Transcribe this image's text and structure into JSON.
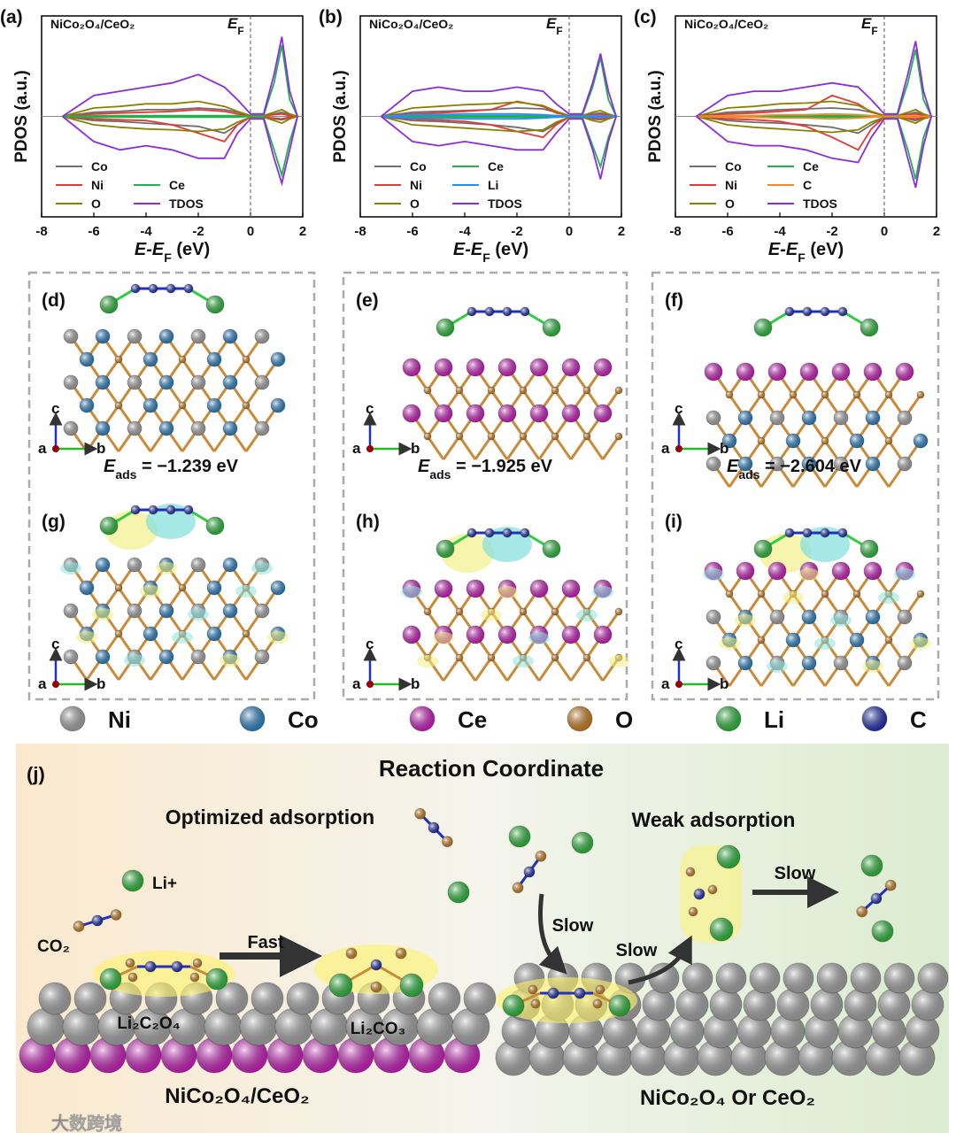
{
  "chart_data": [
    {
      "type": "line",
      "panel": "(a)",
      "title": "NiCo₂O₄/CeO₂",
      "ylabel": "PDOS (a.u.)",
      "xlabel": [
        "E-E",
        "F",
        " (eV)"
      ],
      "fermi_label": [
        "E",
        "F"
      ],
      "x": [
        -7.2,
        -6,
        -5,
        -4,
        -3,
        -2,
        -1,
        -0.5,
        0,
        0.5,
        0.9,
        1.2,
        1.5,
        1.8
      ],
      "xlim": [
        -8,
        2
      ],
      "xticks": [
        -8,
        -6,
        -4,
        -2,
        0,
        2
      ],
      "ylim": [
        -12,
        12
      ],
      "series": [
        {
          "name": "Co",
          "color": "#6e6e6e",
          "values": [
            0,
            0.5,
            0.6,
            0.8,
            0.8,
            1,
            0.8,
            0.5,
            0.1,
            0.1,
            0.3,
            0.5,
            0.2,
            0
          ],
          "values_down": [
            0,
            -0.5,
            -0.6,
            -0.8,
            -1,
            -1.2,
            -2,
            -1,
            -0.1,
            -0.1,
            -0.3,
            -0.4,
            -0.2,
            0
          ]
        },
        {
          "name": "Ni",
          "color": "#e53935",
          "values": [
            0,
            0.3,
            0.4,
            0.5,
            0.6,
            0.8,
            0.6,
            0.3,
            0.1,
            0.1,
            0.2,
            0.3,
            0.1,
            0
          ],
          "values_down": [
            0,
            -0.3,
            -0.4,
            -0.5,
            -1,
            -2,
            -3,
            -1,
            -0.1,
            -0.1,
            -0.2,
            -0.3,
            -0.1,
            0
          ]
        },
        {
          "name": "O",
          "color": "#8b8000",
          "values": [
            0,
            1,
            1.2,
            1.5,
            1.5,
            1.8,
            1.2,
            0.6,
            0.1,
            0.1,
            0.5,
            0.8,
            0.3,
            0
          ],
          "values_down": [
            0,
            -1,
            -1.3,
            -1.5,
            -1.6,
            -1.8,
            -1.5,
            -0.7,
            -0.1,
            -0.1,
            -0.5,
            -0.8,
            -0.3,
            0
          ]
        },
        {
          "name": "Ce",
          "color": "#22b14c",
          "values": [
            0,
            0.1,
            0.1,
            0.1,
            0.1,
            0.1,
            0.1,
            0.1,
            0,
            0.1,
            4,
            8.5,
            2,
            0
          ],
          "values_down": [
            0,
            -0.1,
            -0.1,
            -0.1,
            -0.1,
            -0.1,
            -0.1,
            -0.1,
            0,
            -0.1,
            -4,
            -7,
            -3,
            0
          ]
        },
        {
          "name": "TDOS",
          "color": "#8a2be2",
          "values": [
            0,
            2.5,
            3,
            3.5,
            4,
            5,
            3.5,
            2,
            0.3,
            0.3,
            5,
            9.5,
            3,
            0
          ],
          "values_down": [
            0,
            -3,
            -4,
            -3.5,
            -4,
            -5,
            -5,
            -2,
            -0.3,
            -0.3,
            -5,
            -8,
            -4,
            0
          ]
        }
      ]
    },
    {
      "type": "line",
      "panel": "(b)",
      "title": "NiCo₂O₄/CeO₂",
      "ylabel": "PDOS (a.u.)",
      "xlabel": [
        "E-E",
        "F",
        " (eV)"
      ],
      "fermi_label": [
        "E",
        "F"
      ],
      "x": [
        -7.2,
        -6,
        -5,
        -4,
        -3,
        -2,
        -1,
        -0.5,
        0,
        0.5,
        0.9,
        1.2,
        1.5,
        1.8
      ],
      "xlim": [
        -8,
        2
      ],
      "xticks": [
        -8,
        -6,
        -4,
        -2,
        0,
        2
      ],
      "ylim": [
        -12,
        12
      ],
      "series": [
        {
          "name": "Co",
          "color": "#6e6e6e",
          "values": [
            0,
            0.5,
            0.6,
            0.7,
            0.8,
            1,
            0.9,
            0.5,
            0.1,
            0.1,
            0.3,
            0.4,
            0.2,
            0
          ],
          "values_down": [
            0,
            -0.5,
            -0.6,
            -0.8,
            -1,
            -1.3,
            -1.8,
            -0.9,
            -0.1,
            -0.1,
            -0.3,
            -0.4,
            -0.2,
            0
          ]
        },
        {
          "name": "Ni",
          "color": "#e53935",
          "values": [
            0,
            0.3,
            0.4,
            0.6,
            0.8,
            1.8,
            1.2,
            0.4,
            0.1,
            0.1,
            0.2,
            0.3,
            0.1,
            0
          ],
          "values_down": [
            0,
            -0.3,
            -0.4,
            -0.6,
            -1,
            -1.8,
            -2.5,
            -1,
            -0.1,
            -0.1,
            -0.2,
            -0.3,
            -0.1,
            0
          ]
        },
        {
          "name": "O",
          "color": "#8b8000",
          "values": [
            0,
            1,
            1.2,
            1.4,
            1.5,
            1.7,
            1.3,
            0.6,
            0.1,
            0.1,
            0.5,
            0.7,
            0.3,
            0
          ],
          "values_down": [
            0,
            -1,
            -1.2,
            -1.4,
            -1.6,
            -1.8,
            -1.6,
            -0.7,
            -0.1,
            -0.1,
            -0.5,
            -0.7,
            -0.3,
            0
          ]
        },
        {
          "name": "Ce",
          "color": "#22b14c",
          "values": [
            0,
            0.1,
            0.1,
            0.1,
            0.1,
            0.1,
            0.1,
            0.1,
            0,
            0.1,
            3.5,
            7,
            2,
            0
          ],
          "values_down": [
            0,
            -0.1,
            -0.1,
            -0.1,
            -0.1,
            -0.1,
            -0.1,
            -0.1,
            0,
            -0.1,
            -3.5,
            -6,
            -2.5,
            0
          ]
        },
        {
          "name": "Li",
          "color": "#1e90ff",
          "values": [
            0,
            0.2,
            0.2,
            0.3,
            0.3,
            0.3,
            0.2,
            0.1,
            0,
            0,
            0.1,
            0.1,
            0,
            0
          ],
          "values_down": [
            0,
            -0.2,
            -0.2,
            -0.3,
            -0.3,
            -0.3,
            -0.2,
            -0.1,
            0,
            0,
            -0.1,
            -0.1,
            0,
            0
          ]
        },
        {
          "name": "TDOS",
          "color": "#8a2be2",
          "values": [
            0,
            3,
            3.5,
            3,
            3,
            3.5,
            3,
            1.5,
            0.3,
            0.3,
            4,
            7.5,
            3,
            0
          ],
          "values_down": [
            0,
            -3,
            -3.5,
            -3,
            -3.5,
            -4,
            -4,
            -2,
            -0.3,
            -0.3,
            -4,
            -7.5,
            -3,
            0
          ]
        }
      ]
    },
    {
      "type": "line",
      "panel": "(c)",
      "title": "NiCo₂O₄/CeO₂",
      "ylabel": "PDOS (a.u.)",
      "xlabel": [
        "E-E",
        "F",
        " (eV)"
      ],
      "fermi_label": [
        "E",
        "F"
      ],
      "x": [
        -7.2,
        -6,
        -5,
        -4,
        -3,
        -2,
        -1,
        -0.5,
        0,
        0.5,
        0.9,
        1.2,
        1.5,
        1.8
      ],
      "xlim": [
        -8,
        2
      ],
      "xticks": [
        -8,
        -6,
        -4,
        -2,
        0,
        2
      ],
      "ylim": [
        -12,
        12
      ],
      "series": [
        {
          "name": "Co",
          "color": "#6e6e6e",
          "values": [
            0,
            0.5,
            0.6,
            0.8,
            0.9,
            1,
            0.8,
            0.5,
            0.1,
            0.1,
            0.3,
            0.5,
            0.2,
            0
          ],
          "values_down": [
            0,
            -0.5,
            -0.7,
            -0.8,
            -1,
            -1.3,
            -2,
            -1,
            -0.1,
            -0.1,
            -0.3,
            -0.5,
            -0.2,
            0
          ]
        },
        {
          "name": "Ni",
          "color": "#e53935",
          "values": [
            0,
            0.3,
            0.4,
            0.6,
            0.8,
            2.5,
            1.5,
            0.5,
            0.1,
            0.1,
            0.2,
            0.3,
            0.1,
            0
          ],
          "values_down": [
            0,
            -0.3,
            -0.4,
            -0.6,
            -1.2,
            -2.5,
            -4,
            -1.5,
            -0.1,
            -0.1,
            -0.2,
            -0.3,
            -0.1,
            0
          ]
        },
        {
          "name": "O",
          "color": "#8b8000",
          "values": [
            0,
            1,
            1.2,
            1.5,
            1.6,
            1.8,
            1.3,
            0.6,
            0.1,
            0.1,
            0.5,
            0.8,
            0.3,
            0
          ],
          "values_down": [
            0,
            -1,
            -1.3,
            -1.5,
            -1.7,
            -1.9,
            -1.6,
            -0.7,
            -0.1,
            -0.1,
            -0.5,
            -0.8,
            -0.3,
            0
          ]
        },
        {
          "name": "Ce",
          "color": "#22b14c",
          "values": [
            0,
            0.1,
            0.1,
            0.1,
            0.1,
            0.1,
            0.1,
            0.1,
            0,
            0.1,
            4,
            8,
            2,
            0
          ],
          "values_down": [
            0,
            -0.1,
            -0.1,
            -0.1,
            -0.1,
            -0.1,
            -0.1,
            -0.1,
            0,
            -0.1,
            -4,
            -7.5,
            -2.5,
            0
          ]
        },
        {
          "name": "C",
          "color": "#f08c2c",
          "values": [
            0,
            0.1,
            0.1,
            0.2,
            0.2,
            0.3,
            0.2,
            0.1,
            0,
            0,
            0.1,
            0.1,
            0,
            0
          ],
          "values_down": [
            0,
            -0.1,
            -0.1,
            -0.2,
            -0.2,
            -0.3,
            -0.2,
            -0.1,
            0,
            0,
            -0.1,
            -0.1,
            0,
            0
          ]
        },
        {
          "name": "TDOS",
          "color": "#8a2be2",
          "values": [
            0,
            2.5,
            3,
            3,
            3.5,
            4,
            3.5,
            2,
            0.3,
            0.3,
            5,
            9,
            3,
            0
          ],
          "values_down": [
            0,
            -3,
            -3.5,
            -3.5,
            -4,
            -5,
            -5.5,
            -2.5,
            -0.3,
            -0.3,
            -5,
            -8.5,
            -3.5,
            0
          ]
        }
      ]
    }
  ],
  "structures": [
    {
      "label": "(d)",
      "axes": [
        "c",
        "a",
        "b"
      ],
      "e_ads": [
        "E",
        "ads",
        " = −1.239 eV"
      ]
    },
    {
      "label": "(e)",
      "axes": [
        "c",
        "a",
        "b"
      ],
      "e_ads": [
        "E",
        "ads",
        " = −1.925 eV"
      ]
    },
    {
      "label": "(f)",
      "axes": [
        "c",
        "a",
        "b"
      ],
      "e_ads": [
        "E",
        "ads",
        " = −2.604 eV"
      ]
    },
    {
      "label": "(g)",
      "axes": [
        "c",
        "a",
        "b"
      ]
    },
    {
      "label": "(h)",
      "axes": [
        "c",
        "a",
        "b"
      ]
    },
    {
      "label": "(i)",
      "axes": [
        "c",
        "a",
        "b"
      ]
    }
  ],
  "atoms": [
    {
      "name": "Ni",
      "color": "#b5b5b5"
    },
    {
      "name": "Co",
      "color": "#2f8fd8"
    },
    {
      "name": "Ce",
      "color": "#e020d0"
    },
    {
      "name": "O",
      "color": "#e08a20"
    },
    {
      "name": "Li",
      "color": "#2ecc40"
    },
    {
      "name": "C",
      "color": "#2030c0"
    }
  ],
  "scheme": {
    "label": "(j)",
    "title": "Reaction Coordinate",
    "left_heading": "Optimized adsorption",
    "li": "Li+",
    "co2": "CO₂",
    "fast": "Fast",
    "product_1": "Li₂C₂O₄",
    "product_2": "Li₂CO₃",
    "left_caption": "NiCo₂O₄/CeO₂",
    "right_heading": "Weak adsorption",
    "slow": [
      "Slow",
      "Slow",
      "Slow"
    ],
    "right_caption": "NiCo₂O₄ Or CeO₂",
    "watermark": "大数跨境"
  }
}
